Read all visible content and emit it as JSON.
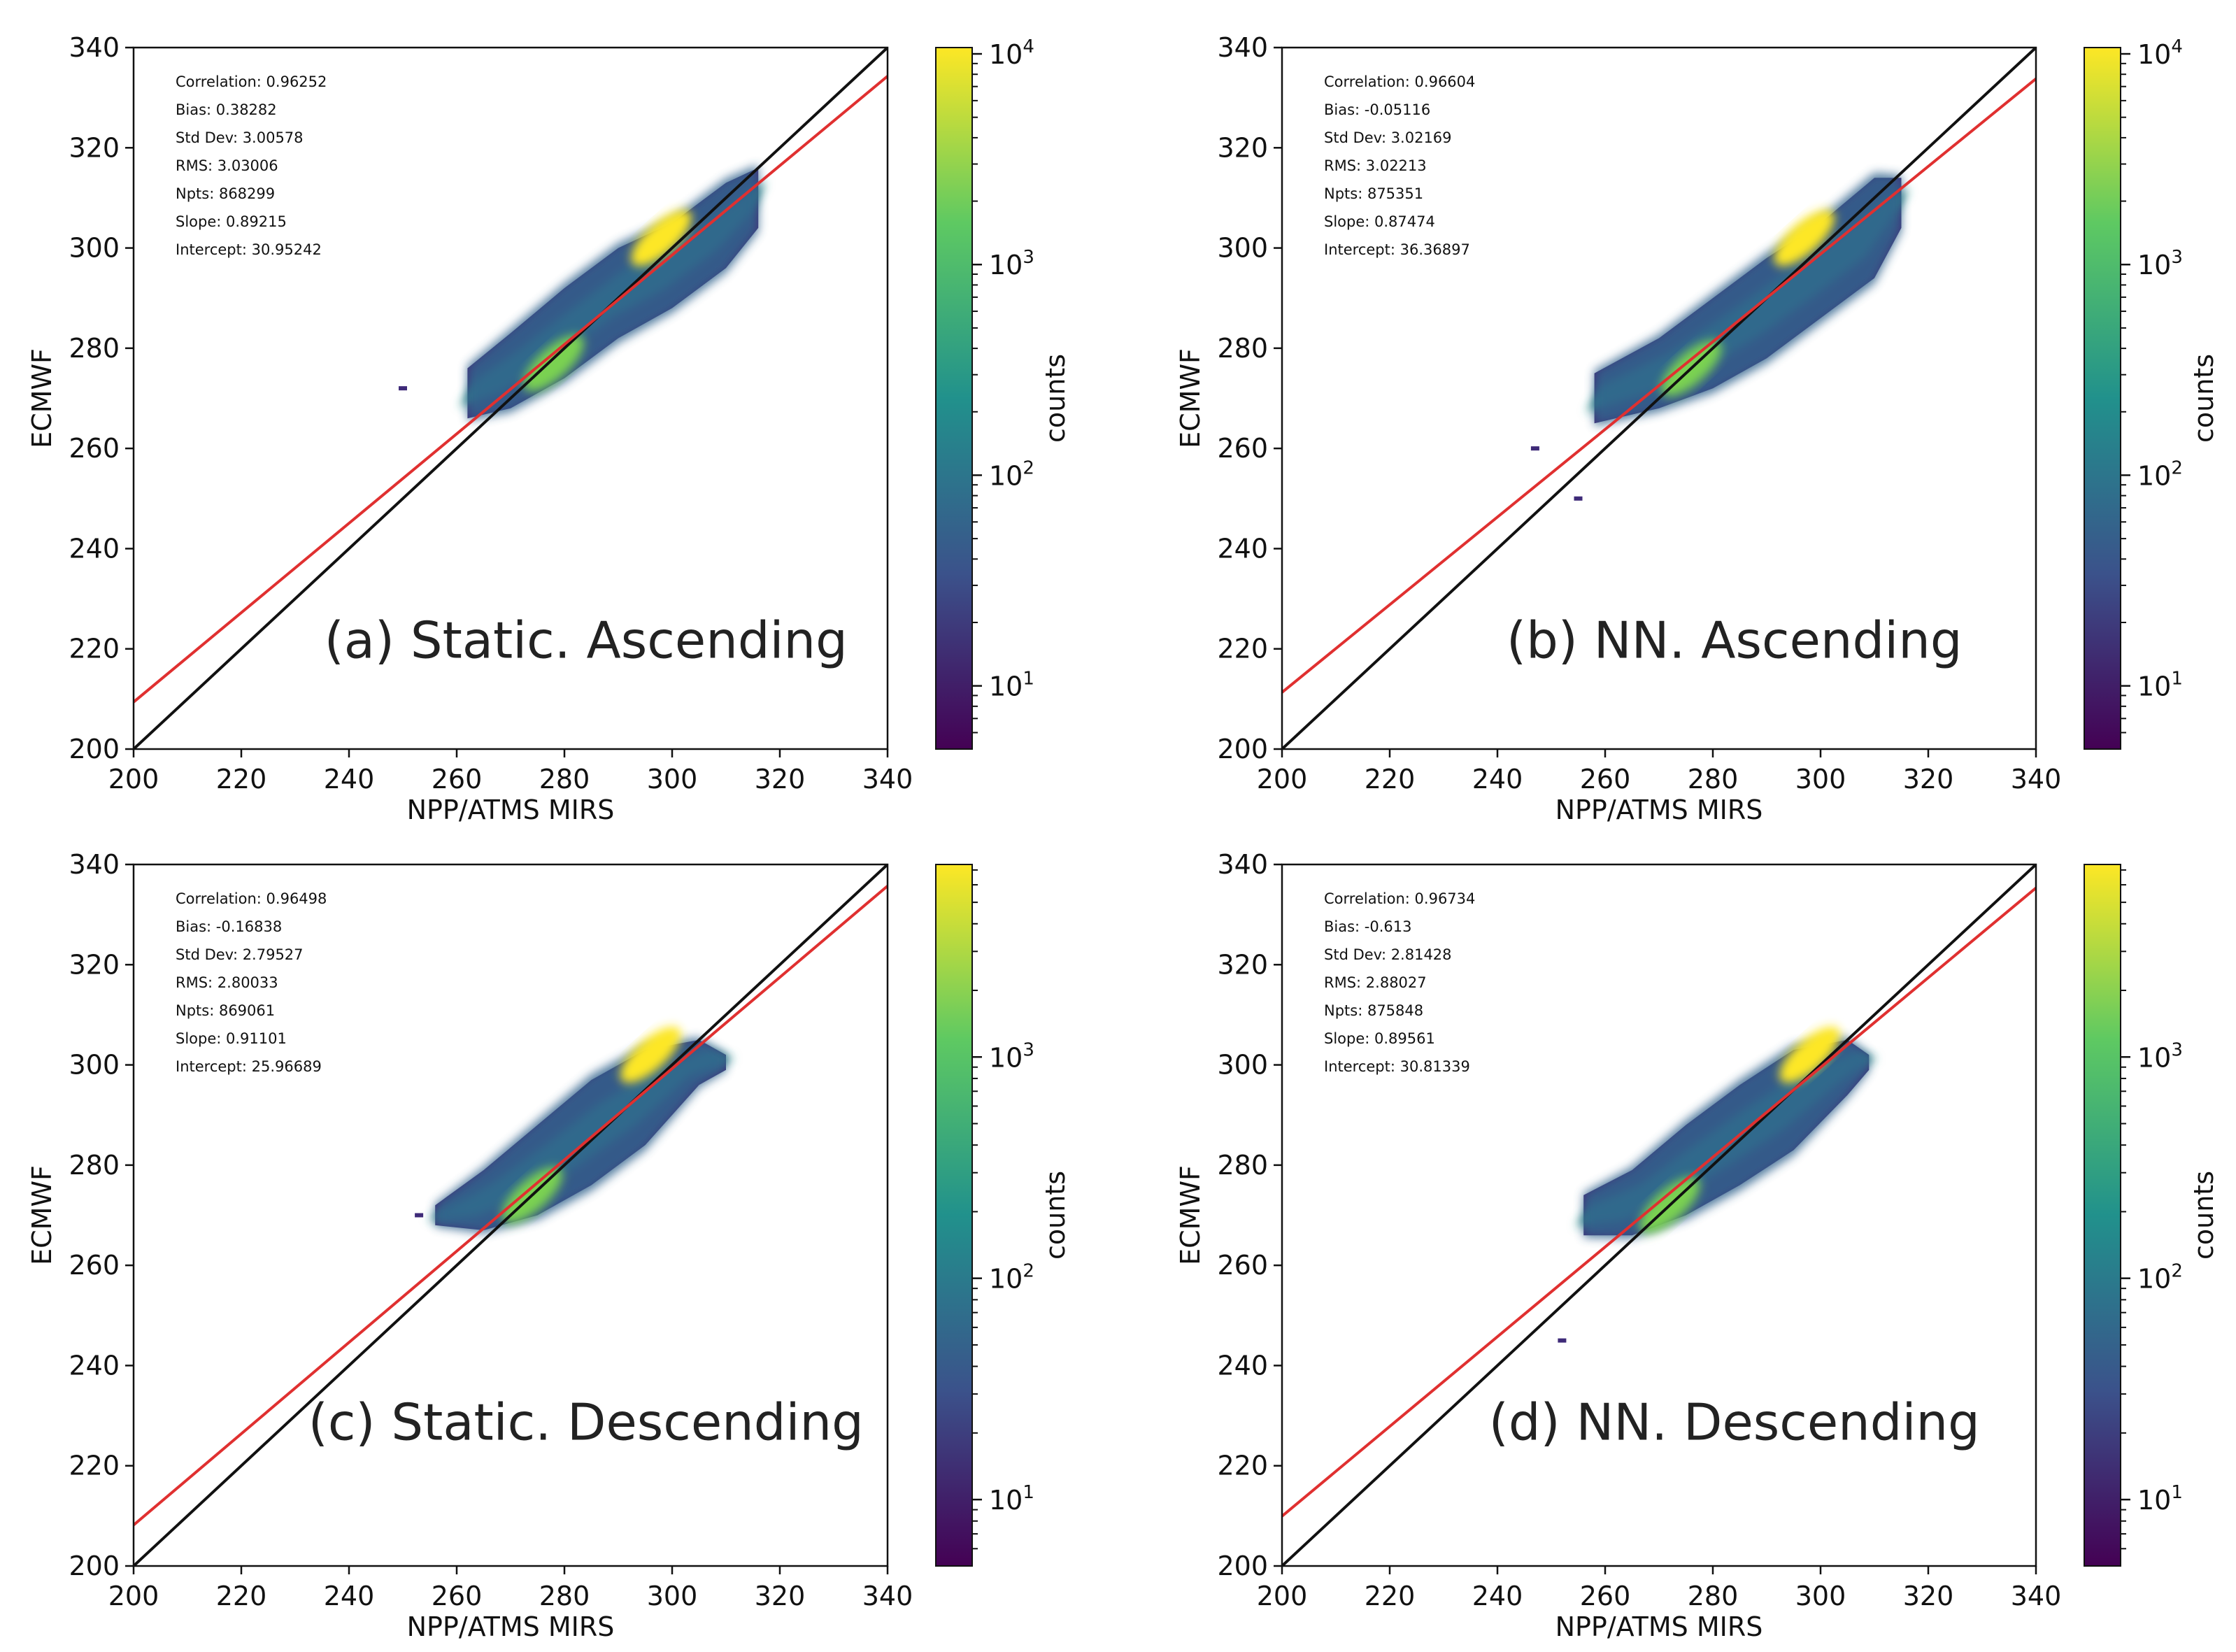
{
  "figure": {
    "colorbar_label": "counts",
    "diagonal_color": "#111111",
    "fit_color": "#e03030",
    "colormap": [
      "#440154",
      "#3b528b",
      "#21918c",
      "#5ec962",
      "#fde725"
    ]
  },
  "chart_data": [
    {
      "type": "heatmap",
      "panel_label": "(a) Static. Ascending",
      "xlabel": "NPP/ATMS MIRS",
      "ylabel": "ECMWF",
      "xlim": [
        200,
        340
      ],
      "ylim": [
        200,
        340
      ],
      "xticks": [
        200,
        220,
        240,
        260,
        280,
        300,
        320,
        340
      ],
      "yticks": [
        200,
        220,
        240,
        260,
        280,
        300,
        320,
        340
      ],
      "stats": [
        "Correlation: 0.96252",
        "Bias: 0.38282",
        "Std Dev: 3.00578",
        "RMS: 3.03006",
        "Npts: 868299",
        "Slope: 0.89215",
        "Intercept: 30.95242"
      ],
      "slope": 0.89215,
      "intercept": 30.95242,
      "density_band": [
        [
          262,
          266,
          276
        ],
        [
          270,
          268,
          283
        ],
        [
          280,
          274,
          292
        ],
        [
          290,
          282,
          300
        ],
        [
          300,
          288,
          305
        ],
        [
          310,
          296,
          313
        ],
        [
          316,
          304,
          316
        ]
      ],
      "peak_regions": [
        [
          298,
          302
        ],
        [
          278,
          277
        ]
      ],
      "outliers": [
        [
          250,
          272
        ]
      ],
      "colorbar": {
        "scale": "log",
        "min_exp": 0.7,
        "max_exp": 4.03,
        "tick_exps": [
          1,
          2,
          3,
          4
        ],
        "base_label": "10"
      }
    },
    {
      "type": "heatmap",
      "panel_label": "(b) NN. Ascending",
      "xlabel": "NPP/ATMS MIRS",
      "ylabel": "ECMWF",
      "xlim": [
        200,
        340
      ],
      "ylim": [
        200,
        340
      ],
      "xticks": [
        200,
        220,
        240,
        260,
        280,
        300,
        320,
        340
      ],
      "yticks": [
        200,
        220,
        240,
        260,
        280,
        300,
        320,
        340
      ],
      "stats": [
        "Correlation: 0.96604",
        "Bias: -0.05116",
        "Std Dev: 3.02169",
        "RMS: 3.02213",
        "Npts: 875351",
        "Slope: 0.87474",
        "Intercept: 36.36897"
      ],
      "slope": 0.87474,
      "intercept": 36.36897,
      "density_band": [
        [
          258,
          265,
          275
        ],
        [
          270,
          268,
          282
        ],
        [
          280,
          272,
          290
        ],
        [
          290,
          278,
          298
        ],
        [
          300,
          286,
          305
        ],
        [
          310,
          294,
          314
        ],
        [
          315,
          304,
          314
        ]
      ],
      "peak_regions": [
        [
          297,
          302
        ],
        [
          276,
          276
        ]
      ],
      "outliers": [
        [
          247,
          260
        ],
        [
          255,
          250
        ]
      ],
      "colorbar": {
        "scale": "log",
        "min_exp": 0.7,
        "max_exp": 4.03,
        "tick_exps": [
          1,
          2,
          3,
          4
        ],
        "base_label": "10"
      }
    },
    {
      "type": "heatmap",
      "panel_label": "(c) Static. Descending",
      "xlabel": "NPP/ATMS MIRS",
      "ylabel": "ECMWF",
      "xlim": [
        200,
        340
      ],
      "ylim": [
        200,
        340
      ],
      "xticks": [
        200,
        220,
        240,
        260,
        280,
        300,
        320,
        340
      ],
      "yticks": [
        200,
        220,
        240,
        260,
        280,
        300,
        320,
        340
      ],
      "stats": [
        "Correlation: 0.96498",
        "Bias: -0.16838",
        "Std Dev: 2.79527",
        "RMS: 2.80033",
        "Npts: 869061",
        "Slope: 0.91101",
        "Intercept: 25.96689"
      ],
      "slope": 0.91101,
      "intercept": 25.96689,
      "density_band": [
        [
          256,
          268,
          272
        ],
        [
          265,
          267,
          279
        ],
        [
          275,
          270,
          288
        ],
        [
          285,
          276,
          297
        ],
        [
          295,
          284,
          303
        ],
        [
          305,
          296,
          305
        ],
        [
          310,
          299,
          302
        ]
      ],
      "peak_regions": [
        [
          296,
          302
        ],
        [
          274,
          274
        ]
      ],
      "outliers": [
        [
          253,
          270
        ]
      ],
      "colorbar": {
        "scale": "log",
        "min_exp": 0.7,
        "max_exp": 3.87,
        "tick_exps": [
          1,
          2,
          3
        ],
        "base_label": "10"
      }
    },
    {
      "type": "heatmap",
      "panel_label": "(d) NN. Descending",
      "xlabel": "NPP/ATMS MIRS",
      "ylabel": "ECMWF",
      "xlim": [
        200,
        340
      ],
      "ylim": [
        200,
        340
      ],
      "xticks": [
        200,
        220,
        240,
        260,
        280,
        300,
        320,
        340
      ],
      "yticks": [
        200,
        220,
        240,
        260,
        280,
        300,
        320,
        340
      ],
      "stats": [
        "Correlation: 0.96734",
        "Bias: -0.613",
        "Std Dev: 2.81428",
        "RMS: 2.88027",
        "Npts: 875848",
        "Slope: 0.89561",
        "Intercept: 30.81339"
      ],
      "slope": 0.89561,
      "intercept": 30.81339,
      "density_band": [
        [
          256,
          266,
          274
        ],
        [
          265,
          266,
          279
        ],
        [
          275,
          270,
          288
        ],
        [
          285,
          276,
          296
        ],
        [
          295,
          283,
          303
        ],
        [
          305,
          294,
          305
        ],
        [
          309,
          299,
          302
        ]
      ],
      "peak_regions": [
        [
          298,
          302
        ],
        [
          272,
          272
        ]
      ],
      "outliers": [
        [
          252,
          245
        ]
      ],
      "colorbar": {
        "scale": "log",
        "min_exp": 0.7,
        "max_exp": 3.87,
        "tick_exps": [
          1,
          2,
          3
        ],
        "base_label": "10"
      }
    }
  ]
}
